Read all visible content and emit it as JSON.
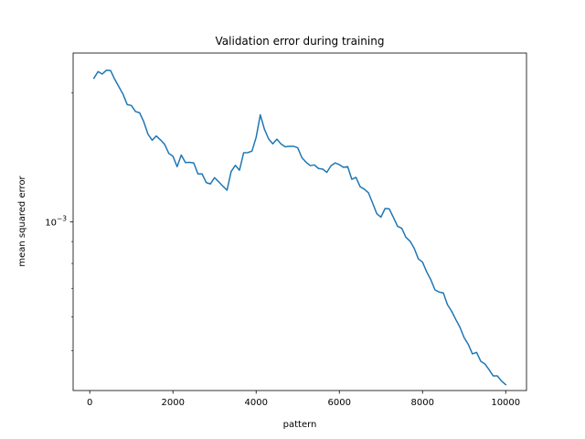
{
  "chart_data": {
    "type": "line",
    "title": "Validation error during training",
    "xlabel": "pattern",
    "ylabel": "mean squared error",
    "yscale": "log",
    "xlim": [
      -400,
      10500
    ],
    "ylim": [
      0.000404,
      0.00248
    ],
    "grid": false,
    "legend": "none",
    "x_ticks": [
      0,
      2000,
      4000,
      6000,
      8000,
      10000
    ],
    "x_tick_labels": [
      "0",
      "2000",
      "4000",
      "6000",
      "8000",
      "10000"
    ],
    "y_major_tick_value": 0.001,
    "y_major_tick_label": {
      "base": "10",
      "exponent": "−3"
    },
    "series": [
      {
        "color": "#1f77b4",
        "x": [
          100,
          200,
          300,
          400,
          500,
          600,
          700,
          800,
          900,
          1000,
          1100,
          1200,
          1300,
          1400,
          1500,
          1600,
          1700,
          1800,
          1900,
          2000,
          2100,
          2200,
          2300,
          2400,
          2500,
          2600,
          2700,
          2800,
          2900,
          3000,
          3100,
          3200,
          3300,
          3400,
          3500,
          3600,
          3700,
          3800,
          3900,
          4000,
          4100,
          4200,
          4300,
          4400,
          4500,
          4600,
          4700,
          4800,
          4900,
          5000,
          5100,
          5200,
          5300,
          5400,
          5500,
          5600,
          5700,
          5800,
          5900,
          6000,
          6100,
          6200,
          6300,
          6400,
          6500,
          6600,
          6700,
          6800,
          6900,
          7000,
          7100,
          7200,
          7300,
          7400,
          7500,
          7600,
          7700,
          7800,
          7900,
          8000,
          8100,
          8200,
          8300,
          8400,
          8500,
          8600,
          8700,
          8800,
          8900,
          9000,
          9100,
          9200,
          9300,
          9400,
          9500,
          9600,
          9700,
          9800,
          9900,
          10000
        ],
        "y": [
          0.002166,
          0.002245,
          0.002215,
          0.002261,
          0.002258,
          0.002154,
          0.002069,
          0.001987,
          0.00188,
          0.001871,
          0.001811,
          0.001798,
          0.001712,
          0.001603,
          0.001552,
          0.001588,
          0.001555,
          0.001518,
          0.001446,
          0.001424,
          0.001346,
          0.001433,
          0.001376,
          0.001378,
          0.001374,
          0.001295,
          0.001295,
          0.001236,
          0.001227,
          0.001269,
          0.001241,
          0.001212,
          0.001186,
          0.001312,
          0.001356,
          0.001321,
          0.001451,
          0.001452,
          0.001464,
          0.001576,
          0.001779,
          0.001646,
          0.001563,
          0.001522,
          0.001561,
          0.00152,
          0.001498,
          0.001502,
          0.001502,
          0.00149,
          0.001413,
          0.001379,
          0.001354,
          0.001359,
          0.001333,
          0.001329,
          0.001306,
          0.001353,
          0.001374,
          0.001361,
          0.001341,
          0.001347,
          0.001258,
          0.001271,
          0.001209,
          0.001193,
          0.00117,
          0.001107,
          0.001046,
          0.001026,
          0.001075,
          0.001073,
          0.001025,
          0.000977,
          0.000967,
          0.000921,
          0.000902,
          0.000868,
          0.00082,
          0.000806,
          0.000765,
          0.000733,
          0.000694,
          0.000686,
          0.000683,
          0.000641,
          0.000619,
          0.000592,
          0.000568,
          0.000537,
          0.000518,
          0.000492,
          0.000496,
          0.000473,
          0.000466,
          0.000452,
          0.000437,
          0.000437,
          0.000425,
          0.000417
        ]
      }
    ]
  }
}
